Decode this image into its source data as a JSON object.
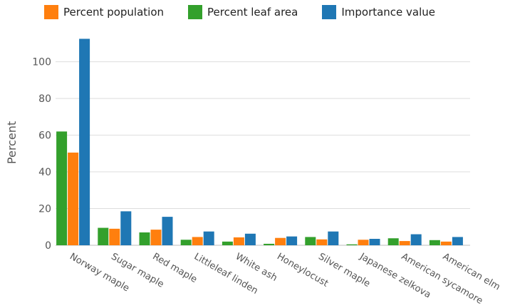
{
  "chart_data": {
    "type": "bar",
    "ylabel": "Percent",
    "ylim": [
      0,
      115
    ],
    "yticks": [
      0,
      20,
      40,
      60,
      80,
      100
    ],
    "legend_position": "top",
    "categories": [
      "Norway maple",
      "Sugar maple",
      "Red maple",
      "Littleleaf linden",
      "White ash",
      "Honeylocust",
      "Silver maple",
      "Japanese zelkova",
      "American sycamore",
      "American elm"
    ],
    "series": [
      {
        "name": "Percent leaf area",
        "color": "#33a02c",
        "values": [
          62,
          9.5,
          7,
          3,
          2,
          0.8,
          4.5,
          0.5,
          3.8,
          2.8
        ]
      },
      {
        "name": "Percent population",
        "color": "#ff7f0e",
        "values": [
          50.5,
          9,
          8.5,
          4.5,
          4.3,
          4,
          3.2,
          3,
          2.3,
          2
        ]
      },
      {
        "name": "Importance value",
        "color": "#1f77b4",
        "values": [
          112.5,
          18.5,
          15.5,
          7.5,
          6.3,
          4.8,
          7.5,
          3.5,
          6,
          4.5
        ]
      }
    ],
    "legend_order": [
      1,
      0,
      2
    ]
  }
}
